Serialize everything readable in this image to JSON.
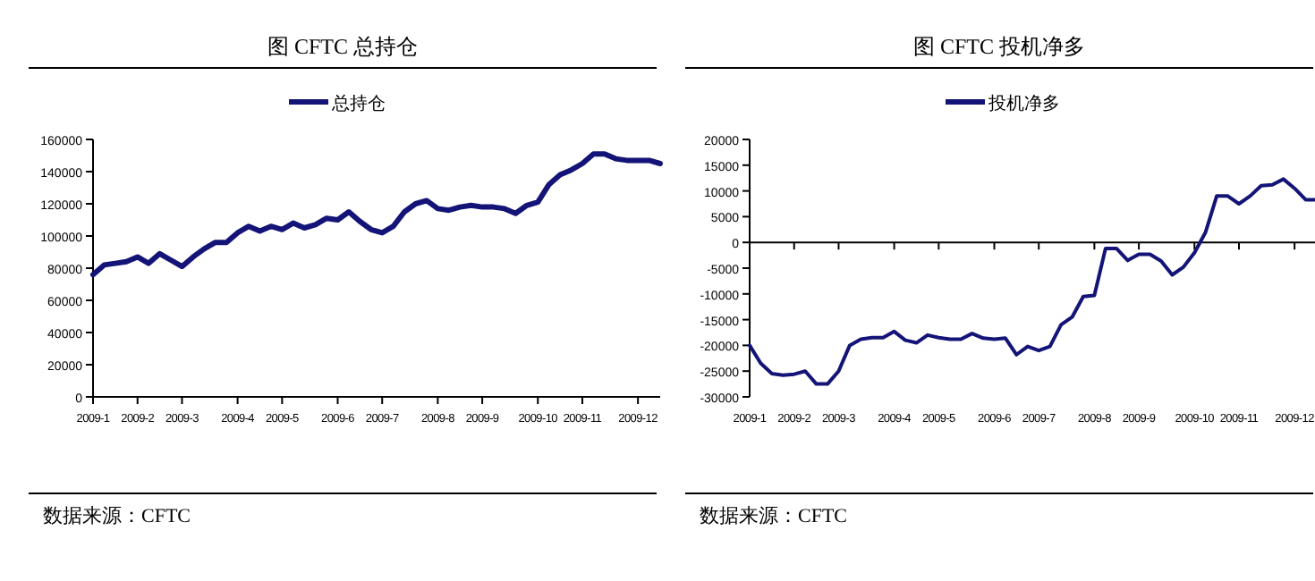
{
  "chart_data": [
    {
      "type": "line",
      "title": "图  CFTC  总持仓",
      "categories": [
        "2009-1",
        null,
        null,
        null,
        "2009-2",
        null,
        null,
        null,
        "2009-3",
        null,
        null,
        null,
        null,
        "2009-4",
        null,
        null,
        null,
        "2009-5",
        null,
        null,
        null,
        null,
        "2009-6",
        null,
        null,
        null,
        "2009-7",
        null,
        null,
        null,
        null,
        "2009-8",
        null,
        null,
        null,
        "2009-9",
        null,
        null,
        null,
        null,
        "2009-10",
        null,
        null,
        null,
        "2009-11",
        null,
        null,
        null,
        null,
        "2009-12",
        null,
        null
      ],
      "series": [
        {
          "name": "总持仓",
          "color": "#141478",
          "values": [
            76000,
            82000,
            83000,
            84000,
            87000,
            83000,
            89000,
            85000,
            81000,
            87000,
            92000,
            96000,
            96000,
            102000,
            106000,
            103000,
            106000,
            104000,
            108000,
            105000,
            107000,
            111000,
            110000,
            115000,
            109000,
            104000,
            102000,
            106000,
            115000,
            120000,
            122000,
            117000,
            116000,
            118000,
            119000,
            118000,
            118000,
            117000,
            114000,
            119000,
            121000,
            132000,
            138000,
            141000,
            145000,
            151000,
            151000,
            148000,
            147000,
            147000,
            147000,
            145000
          ]
        }
      ],
      "ylim": [
        0,
        160000
      ],
      "yticks": [
        0,
        20000,
        40000,
        60000,
        80000,
        100000,
        120000,
        140000,
        160000
      ],
      "grid": false,
      "legend": "top",
      "marker": "none",
      "line_style": "solid",
      "annotations": [
        "数据来源：CFTC"
      ]
    },
    {
      "type": "line",
      "title": "图    CFTC  投机净多",
      "categories": [
        "2009-1",
        null,
        null,
        null,
        "2009-2",
        null,
        null,
        null,
        "2009-3",
        null,
        null,
        null,
        null,
        "2009-4",
        null,
        null,
        null,
        "2009-5",
        null,
        null,
        null,
        null,
        "2009-6",
        null,
        null,
        null,
        "2009-7",
        null,
        null,
        null,
        null,
        "2009-8",
        null,
        null,
        null,
        "2009-9",
        null,
        null,
        null,
        null,
        "2009-10",
        null,
        null,
        null,
        "2009-11",
        null,
        null,
        null,
        null,
        "2009-12",
        null,
        null
      ],
      "series": [
        {
          "name": "投机净多",
          "color": "#141478",
          "values": [
            -20000,
            -23500,
            -25500,
            -25800,
            -25600,
            -25000,
            -27500,
            -27500,
            -25000,
            -20000,
            -18800,
            -18500,
            -18500,
            -17300,
            -19000,
            -19500,
            -18000,
            -18500,
            -18800,
            -18800,
            -17700,
            -18600,
            -18800,
            -18600,
            -21800,
            -20200,
            -21000,
            -20200,
            -16000,
            -14500,
            -10500,
            -10300,
            -1200,
            -1200,
            -3500,
            -2300,
            -2300,
            -3600,
            -6300,
            -4800,
            -2000,
            2000,
            9000,
            9000,
            7500,
            9000,
            11000,
            11200,
            12300,
            10500,
            8300,
            8300
          ]
        }
      ],
      "ylim": [
        -30000,
        20000
      ],
      "yticks": [
        -30000,
        -25000,
        -20000,
        -15000,
        -10000,
        -5000,
        0,
        5000,
        10000,
        15000,
        20000
      ],
      "ref_lines": [
        {
          "axis": "y",
          "value": 0
        }
      ],
      "grid": false,
      "legend": "top",
      "marker": "none",
      "line_style": "solid",
      "annotations": [
        "数据来源：CFTC"
      ]
    }
  ]
}
